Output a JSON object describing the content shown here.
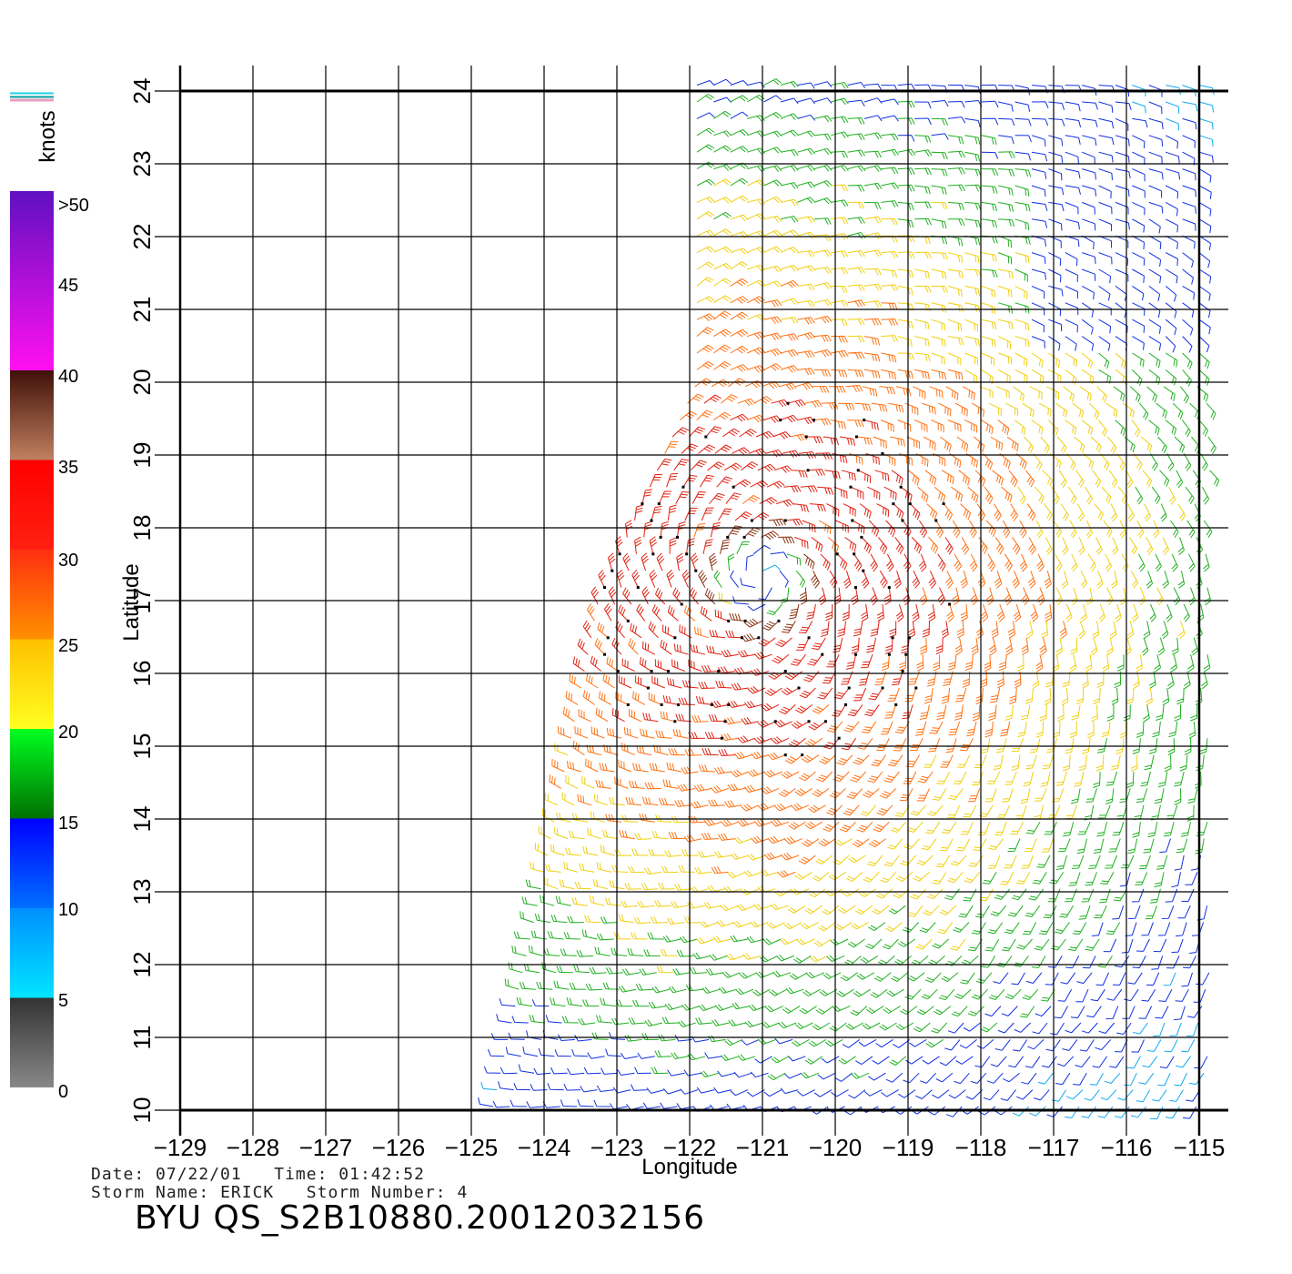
{
  "chart_data": {
    "type": "wind-barb-map",
    "xlabel": "Longitude",
    "ylabel": "Latitude",
    "xlim": [
      -129,
      -114.6
    ],
    "ylim": [
      10,
      24.2
    ],
    "x_ticks": [
      -129,
      -128,
      -127,
      -126,
      -125,
      -124,
      -123,
      -122,
      -121,
      -120,
      -119,
      -118,
      -117,
      -116,
      -115
    ],
    "y_ticks": [
      10,
      11,
      12,
      13,
      14,
      15,
      16,
      17,
      18,
      19,
      20,
      21,
      22,
      23,
      24
    ],
    "grid": true,
    "storm_center": {
      "lon": -121.0,
      "lat": 17.3
    },
    "colorbar": {
      "unit_label": "knots",
      "tick_labels": [
        ">50",
        "45",
        "40",
        "35",
        "30",
        "25",
        "20",
        "15",
        "10",
        "5",
        "0"
      ],
      "segments": [
        {
          "from": 0,
          "to": 5,
          "colors": [
            "#888888",
            "#333333"
          ]
        },
        {
          "from": 5,
          "to": 10,
          "colors": [
            "#00e5ff",
            "#0090ff"
          ]
        },
        {
          "from": 10,
          "to": 15,
          "colors": [
            "#0070ff",
            "#0000ff"
          ]
        },
        {
          "from": 15,
          "to": 20,
          "colors": [
            "#007000",
            "#00ff20"
          ]
        },
        {
          "from": 20,
          "to": 25,
          "colors": [
            "#ffff20",
            "#ffc000"
          ]
        },
        {
          "from": 25,
          "to": 30,
          "colors": [
            "#ff9000",
            "#ff3010"
          ]
        },
        {
          "from": 30,
          "to": 35,
          "colors": [
            "#ff2010",
            "#ff0000"
          ]
        },
        {
          "from": 35,
          "to": 40,
          "colors": [
            "#c08060",
            "#401008"
          ]
        },
        {
          "from": 40,
          "to": 50,
          "colors": [
            "#ff10f0",
            "#6010c0"
          ]
        }
      ]
    }
  },
  "footer": {
    "date_label": "Date:",
    "date": "07/22/01",
    "time_label": "Time:",
    "time": "01:42:52",
    "storm_name_label": "Storm Name:",
    "storm_name": "ERICK",
    "storm_number_label": "Storm Number:",
    "storm_number": "4",
    "title": "BYU  QS_S2B10880.20012032156"
  }
}
